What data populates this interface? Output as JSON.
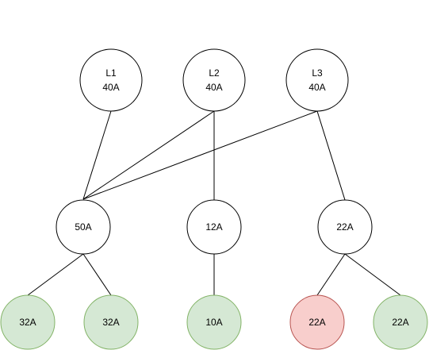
{
  "diagram": {
    "colors": {
      "stroke": "#000000",
      "background": "#ffffff",
      "green_fill": "#d5e8d4",
      "green_stroke": "#82b366",
      "red_fill": "#f8cecc",
      "red_stroke": "#b85450"
    },
    "nodes": [
      {
        "id": "l1",
        "line1": "L1",
        "line2": "40A",
        "style": "plain"
      },
      {
        "id": "l2",
        "line1": "L2",
        "line2": "40A",
        "style": "plain"
      },
      {
        "id": "l3",
        "line1": "L3",
        "line2": "40A",
        "style": "plain"
      },
      {
        "id": "b50",
        "line1": "50A",
        "style": "plain"
      },
      {
        "id": "b12",
        "line1": "12A",
        "style": "plain"
      },
      {
        "id": "b22",
        "line1": "22A",
        "style": "plain"
      },
      {
        "id": "c32a",
        "line1": "32A",
        "style": "green"
      },
      {
        "id": "c32b",
        "line1": "32A",
        "style": "green"
      },
      {
        "id": "c10",
        "line1": "10A",
        "style": "green"
      },
      {
        "id": "c22a",
        "line1": "22A",
        "style": "red"
      },
      {
        "id": "c22b",
        "line1": "22A",
        "style": "green"
      }
    ],
    "edges": [
      {
        "from": "l1",
        "to": "b50"
      },
      {
        "from": "l2",
        "to": "b50"
      },
      {
        "from": "l3",
        "to": "b50"
      },
      {
        "from": "l2",
        "to": "b12"
      },
      {
        "from": "l3",
        "to": "b22"
      },
      {
        "from": "b50",
        "to": "c32a"
      },
      {
        "from": "b50",
        "to": "c32b"
      },
      {
        "from": "b12",
        "to": "c10"
      },
      {
        "from": "b22",
        "to": "c22a"
      },
      {
        "from": "b22",
        "to": "c22b"
      }
    ]
  }
}
